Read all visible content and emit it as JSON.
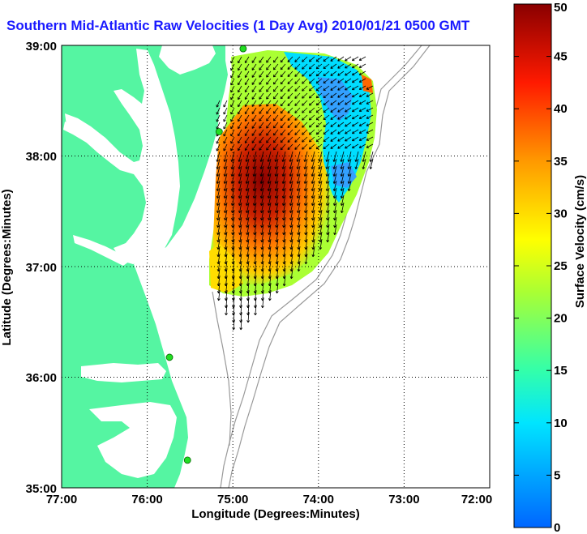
{
  "title": "Southern Mid-Atlantic Raw Velocities (1 Day Avg) 2010/01/21 0500 GMT",
  "xlabel": "Longitude (Degrees:Minutes)",
  "ylabel": "Latitude (Degrees:Minutes)",
  "colorbar_label": "Surface Velocity (cm/s)",
  "x_ticks": [
    "77:00",
    "76:00",
    "75:00",
    "74:00",
    "73:00",
    "72:00"
  ],
  "y_ticks": [
    "39:00",
    "38:00",
    "37:00",
    "36:00",
    "35:00"
  ],
  "colorbar_ticks": [
    "0",
    "5",
    "10",
    "15",
    "20",
    "25",
    "30",
    "35",
    "40",
    "45",
    "50"
  ],
  "map_extent": {
    "lon": [
      -77,
      -72
    ],
    "lat": [
      35,
      39
    ]
  },
  "colorbar_range": [
    0,
    50
  ],
  "colors": {
    "land": "#55f5a2",
    "title": "#1a1aff",
    "station": "#22dd22",
    "bathymetry": "#999999"
  },
  "stations": [
    {
      "lon": -74.88,
      "lat": 38.97
    },
    {
      "lon": -75.16,
      "lat": 38.22
    },
    {
      "lon": -75.74,
      "lat": 36.18
    },
    {
      "lon": -75.53,
      "lat": 35.25
    }
  ]
}
